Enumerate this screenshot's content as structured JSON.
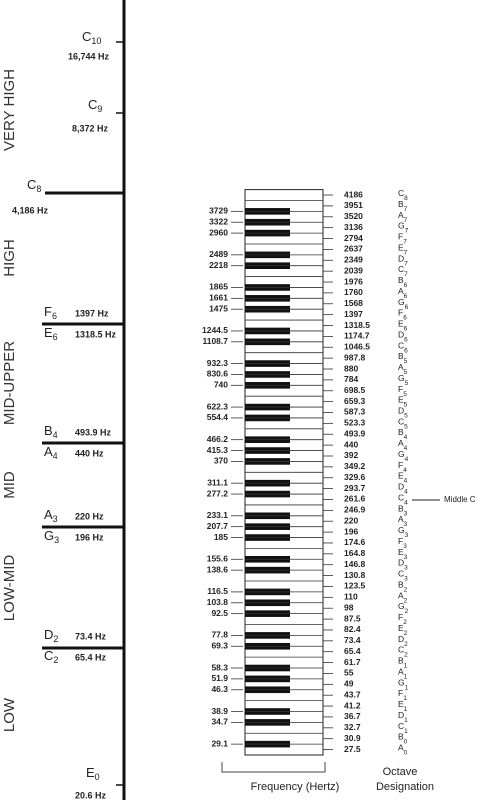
{
  "range_labels": [
    "VERY HIGH",
    "HIGH",
    "MID-UPPER",
    "MID",
    "LOW-MID",
    "LOW"
  ],
  "markers": [
    {
      "note": "C",
      "octave": "10",
      "freq": "16,744 Hz"
    },
    {
      "note": "C",
      "octave": "9",
      "freq": "8,372 Hz"
    },
    {
      "note": "C",
      "octave": "8",
      "freq": "4,186 Hz"
    },
    {
      "note": "F",
      "octave": "6",
      "freq": "1397 Hz"
    },
    {
      "note": "E",
      "octave": "6",
      "freq": "1318.5 Hz"
    },
    {
      "note": "B",
      "octave": "4",
      "freq": "493.9 Hz"
    },
    {
      "note": "A",
      "octave": "4",
      "freq": "440 Hz"
    },
    {
      "note": "A",
      "octave": "3",
      "freq": "220 Hz"
    },
    {
      "note": "G",
      "octave": "3",
      "freq": "196 Hz"
    },
    {
      "note": "D",
      "octave": "2",
      "freq": "73.4 Hz"
    },
    {
      "note": "C",
      "octave": "2",
      "freq": "65.4 Hz"
    },
    {
      "note": "E",
      "octave": "0",
      "freq": "20.6 Hz"
    }
  ],
  "white_keys": [
    {
      "freq": "4186",
      "note": "C",
      "octave": "8"
    },
    {
      "freq": "3951",
      "note": "B",
      "octave": "7"
    },
    {
      "freq": "3520",
      "note": "A",
      "octave": "7"
    },
    {
      "freq": "3136",
      "note": "G",
      "octave": "7"
    },
    {
      "freq": "2794",
      "note": "F",
      "octave": "7"
    },
    {
      "freq": "2637",
      "note": "E",
      "octave": "7"
    },
    {
      "freq": "2349",
      "note": "D",
      "octave": "7"
    },
    {
      "freq": "2039",
      "note": "C",
      "octave": "7"
    },
    {
      "freq": "1976",
      "note": "B",
      "octave": "6"
    },
    {
      "freq": "1760",
      "note": "A",
      "octave": "6"
    },
    {
      "freq": "1568",
      "note": "G",
      "octave": "6"
    },
    {
      "freq": "1397",
      "note": "F",
      "octave": "6"
    },
    {
      "freq": "1318.5",
      "note": "E",
      "octave": "6"
    },
    {
      "freq": "1174.7",
      "note": "D",
      "octave": "6"
    },
    {
      "freq": "1046.5",
      "note": "C",
      "octave": "6"
    },
    {
      "freq": "987.8",
      "note": "B",
      "octave": "5"
    },
    {
      "freq": "880",
      "note": "A",
      "octave": "5"
    },
    {
      "freq": "784",
      "note": "G",
      "octave": "5"
    },
    {
      "freq": "698.5",
      "note": "F",
      "octave": "5"
    },
    {
      "freq": "659.3",
      "note": "E",
      "octave": "5"
    },
    {
      "freq": "587.3",
      "note": "D",
      "octave": "5"
    },
    {
      "freq": "523.3",
      "note": "C",
      "octave": "5"
    },
    {
      "freq": "493.9",
      "note": "B",
      "octave": "4"
    },
    {
      "freq": "440",
      "note": "A",
      "octave": "4"
    },
    {
      "freq": "392",
      "note": "G",
      "octave": "4"
    },
    {
      "freq": "349.2",
      "note": "F",
      "octave": "4"
    },
    {
      "freq": "329.6",
      "note": "E",
      "octave": "4"
    },
    {
      "freq": "293.7",
      "note": "D",
      "octave": "4"
    },
    {
      "freq": "261.6",
      "note": "C",
      "octave": "4"
    },
    {
      "freq": "246.9",
      "note": "B",
      "octave": "3"
    },
    {
      "freq": "220",
      "note": "A",
      "octave": "3"
    },
    {
      "freq": "196",
      "note": "G",
      "octave": "3"
    },
    {
      "freq": "174.6",
      "note": "F",
      "octave": "3"
    },
    {
      "freq": "164.8",
      "note": "E",
      "octave": "3"
    },
    {
      "freq": "146.8",
      "note": "D",
      "octave": "3"
    },
    {
      "freq": "130.8",
      "note": "C",
      "octave": "3"
    },
    {
      "freq": "123.5",
      "note": "B",
      "octave": "2"
    },
    {
      "freq": "110",
      "note": "A",
      "octave": "2"
    },
    {
      "freq": "98",
      "note": "G",
      "octave": "2"
    },
    {
      "freq": "87.5",
      "note": "F",
      "octave": "2"
    },
    {
      "freq": "82.4",
      "note": "E",
      "octave": "2"
    },
    {
      "freq": "73.4",
      "note": "D",
      "octave": "2"
    },
    {
      "freq": "65.4",
      "note": "C",
      "octave": "2"
    },
    {
      "freq": "61.7",
      "note": "B",
      "octave": "1"
    },
    {
      "freq": "55",
      "note": "A",
      "octave": "1"
    },
    {
      "freq": "49",
      "note": "G",
      "octave": "1"
    },
    {
      "freq": "43.7",
      "note": "F",
      "octave": "1"
    },
    {
      "freq": "41.2",
      "note": "E",
      "octave": "1"
    },
    {
      "freq": "36.7",
      "note": "D",
      "octave": "1"
    },
    {
      "freq": "32.7",
      "note": "C",
      "octave": "1"
    },
    {
      "freq": "30.9",
      "note": "B",
      "octave": "0"
    },
    {
      "freq": "27.5",
      "note": "A",
      "octave": "0"
    }
  ],
  "black_keys": [
    "3729",
    "3322",
    "2960",
    "2489",
    "2218",
    "1865",
    "1661",
    "1475",
    "1244.5",
    "1108.7",
    "932.3",
    "830.6",
    "740",
    "622.3",
    "554.4",
    "466.2",
    "415.3",
    "370",
    "311.1",
    "277.2",
    "233.1",
    "207.7",
    "185",
    "155.6",
    "138.6",
    "116.5",
    "103.8",
    "92.5",
    "77.8",
    "69.3",
    "58.3",
    "51.9",
    "46.3",
    "38.9",
    "34.7",
    "29.1"
  ],
  "middle_c": "Middle C",
  "frequency_label": "Frequency (Hertz)",
  "octave_label": [
    "Octave",
    "Designation"
  ]
}
